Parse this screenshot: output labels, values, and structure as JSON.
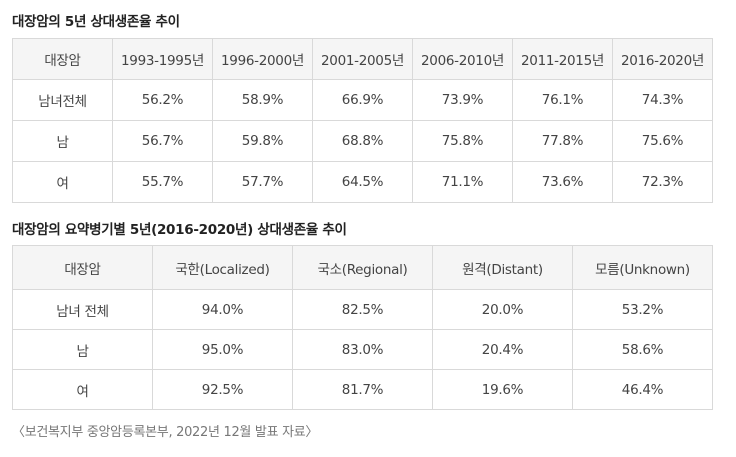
{
  "table1": {
    "title": "대장암의 5년 상대생존율 추이",
    "headers": [
      "대장암",
      "1993-1995년",
      "1996-2000년",
      "2001-2005년",
      "2006-2010년",
      "2011-2015년",
      "2016-2020년"
    ],
    "rows": [
      [
        "남녀전체",
        "56.2%",
        "58.9%",
        "66.9%",
        "73.9%",
        "76.1%",
        "74.3%"
      ],
      [
        "남",
        "56.7%",
        "59.8%",
        "68.8%",
        "75.8%",
        "77.8%",
        "75.6%"
      ],
      [
        "여",
        "55.7%",
        "57.7%",
        "64.5%",
        "71.1%",
        "73.6%",
        "72.3%"
      ]
    ]
  },
  "table2": {
    "title": "대장암의 요약병기별 5년(2016-2020년) 상대생존율 추이",
    "headers": [
      "대장암",
      "국한(Localized)",
      "국소(Regional)",
      "원격(Distant)",
      "모름(Unknown)"
    ],
    "rows": [
      [
        "남녀 전체",
        "94.0%",
        "82.5%",
        "20.0%",
        "53.2%"
      ],
      [
        "남",
        "95.0%",
        "83.0%",
        "20.4%",
        "58.6%"
      ],
      [
        "여",
        "92.5%",
        "81.7%",
        "19.6%",
        "46.4%"
      ]
    ]
  },
  "source_note": "〈보건복지부 중앙암등록본부, 2022년 12월 발표 자료〉"
}
